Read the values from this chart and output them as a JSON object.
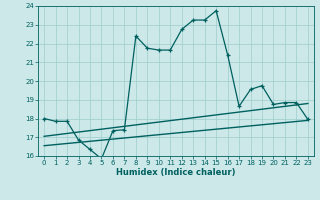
{
  "xlabel": "Humidex (Indice chaleur)",
  "bg_color": "#cce8e8",
  "grid_color": "#9ecece",
  "line_color": "#006060",
  "xlim": [
    -0.5,
    23.5
  ],
  "ylim": [
    16,
    24
  ],
  "xticks": [
    0,
    1,
    2,
    3,
    4,
    5,
    6,
    7,
    8,
    9,
    10,
    11,
    12,
    13,
    14,
    15,
    16,
    17,
    18,
    19,
    20,
    21,
    22,
    23
  ],
  "yticks": [
    16,
    17,
    18,
    19,
    20,
    21,
    22,
    23,
    24
  ],
  "line1_x": [
    0,
    1,
    2,
    3,
    4,
    5,
    6,
    7,
    8,
    9,
    10,
    11,
    12,
    13,
    14,
    15,
    16,
    17,
    18,
    19,
    20,
    21,
    22,
    23
  ],
  "line1_y": [
    18.0,
    17.85,
    17.85,
    16.85,
    16.35,
    15.85,
    17.35,
    17.4,
    22.4,
    21.75,
    21.65,
    21.65,
    22.75,
    23.25,
    23.25,
    23.75,
    21.4,
    18.65,
    19.55,
    19.75,
    18.75,
    18.85,
    18.85,
    17.95
  ],
  "line2_x": [
    0,
    23
  ],
  "line2_y": [
    17.05,
    18.8
  ],
  "line3_x": [
    0,
    23
  ],
  "line3_y": [
    16.55,
    17.9
  ]
}
